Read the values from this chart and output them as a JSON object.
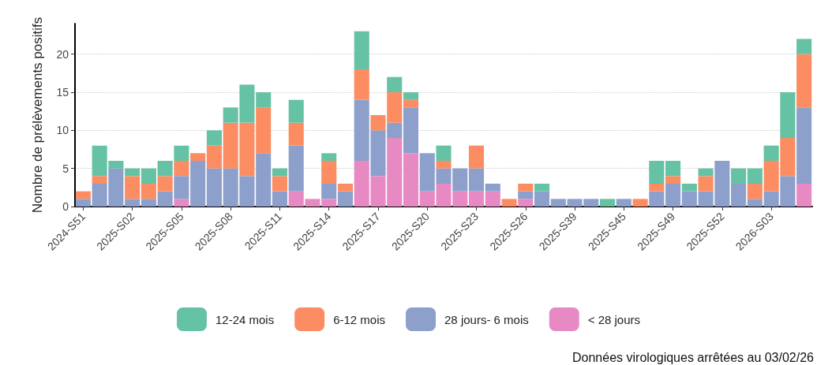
{
  "chart_data": {
    "type": "bar",
    "stacked": true,
    "ylabel": "Nombre de prélèvements positifs",
    "annotations": [
      "Données virologiques arrêtées au 03/02/26"
    ],
    "categories": [
      "2024-S51",
      null,
      null,
      "2025-S02",
      null,
      null,
      "2025-S05",
      null,
      null,
      "2025-S08",
      null,
      null,
      "2025-S11",
      null,
      null,
      "2025-S14",
      null,
      null,
      "2025-S17",
      null,
      null,
      "2025-S20",
      null,
      null,
      "2025-S23",
      null,
      null,
      "2025-S26",
      null,
      null,
      "2025-S39",
      null,
      null,
      "2025-S45",
      null,
      null,
      "2025-S49",
      null,
      null,
      "2025-S52",
      null,
      null,
      "2026-S03",
      null,
      null
    ],
    "ylim": [
      0,
      24
    ],
    "yticks": [
      0,
      5,
      10,
      15,
      20
    ],
    "grid": "y",
    "legend": "bottom",
    "series": [
      {
        "name": "< 28 jours",
        "color": "#e78ac3",
        "values": [
          0,
          0,
          0,
          0,
          0,
          0,
          1,
          0,
          0,
          0,
          0,
          0,
          0,
          2,
          1,
          1,
          0,
          6,
          4,
          9,
          7,
          2,
          3,
          2,
          2,
          2,
          0,
          1,
          0,
          0,
          0,
          0,
          0,
          0,
          0,
          0,
          0,
          0,
          0,
          0,
          0,
          0,
          0,
          0,
          3
        ]
      },
      {
        "name": "28 jours- 6 mois",
        "color": "#8da0cb",
        "values": [
          1,
          3,
          5,
          1,
          1,
          2,
          3,
          6,
          5,
          5,
          4,
          7,
          2,
          6,
          0,
          2,
          2,
          8,
          6,
          2,
          6,
          5,
          2,
          3,
          3,
          1,
          0,
          1,
          2,
          1,
          1,
          1,
          0,
          1,
          0,
          2,
          3,
          2,
          2,
          6,
          3,
          1,
          2,
          4,
          10
        ]
      },
      {
        "name": "6-12 mois",
        "color": "#fc8d62",
        "values": [
          1,
          1,
          0,
          3,
          2,
          2,
          2,
          1,
          3,
          6,
          7,
          6,
          2,
          3,
          0,
          3,
          1,
          4,
          2,
          4,
          1,
          0,
          1,
          0,
          3,
          0,
          1,
          1,
          0,
          0,
          0,
          0,
          0,
          0,
          1,
          1,
          1,
          0,
          2,
          0,
          0,
          2,
          4,
          5,
          7
        ]
      },
      {
        "name": "12-24 mois",
        "color": "#66c2a5",
        "values": [
          0,
          4,
          1,
          1,
          2,
          2,
          2,
          0,
          2,
          2,
          5,
          2,
          1,
          3,
          0,
          1,
          0,
          5,
          0,
          2,
          1,
          0,
          2,
          0,
          0,
          0,
          0,
          0,
          1,
          0,
          0,
          0,
          1,
          0,
          0,
          3,
          2,
          1,
          1,
          0,
          2,
          2,
          2,
          6,
          2
        ]
      }
    ]
  }
}
